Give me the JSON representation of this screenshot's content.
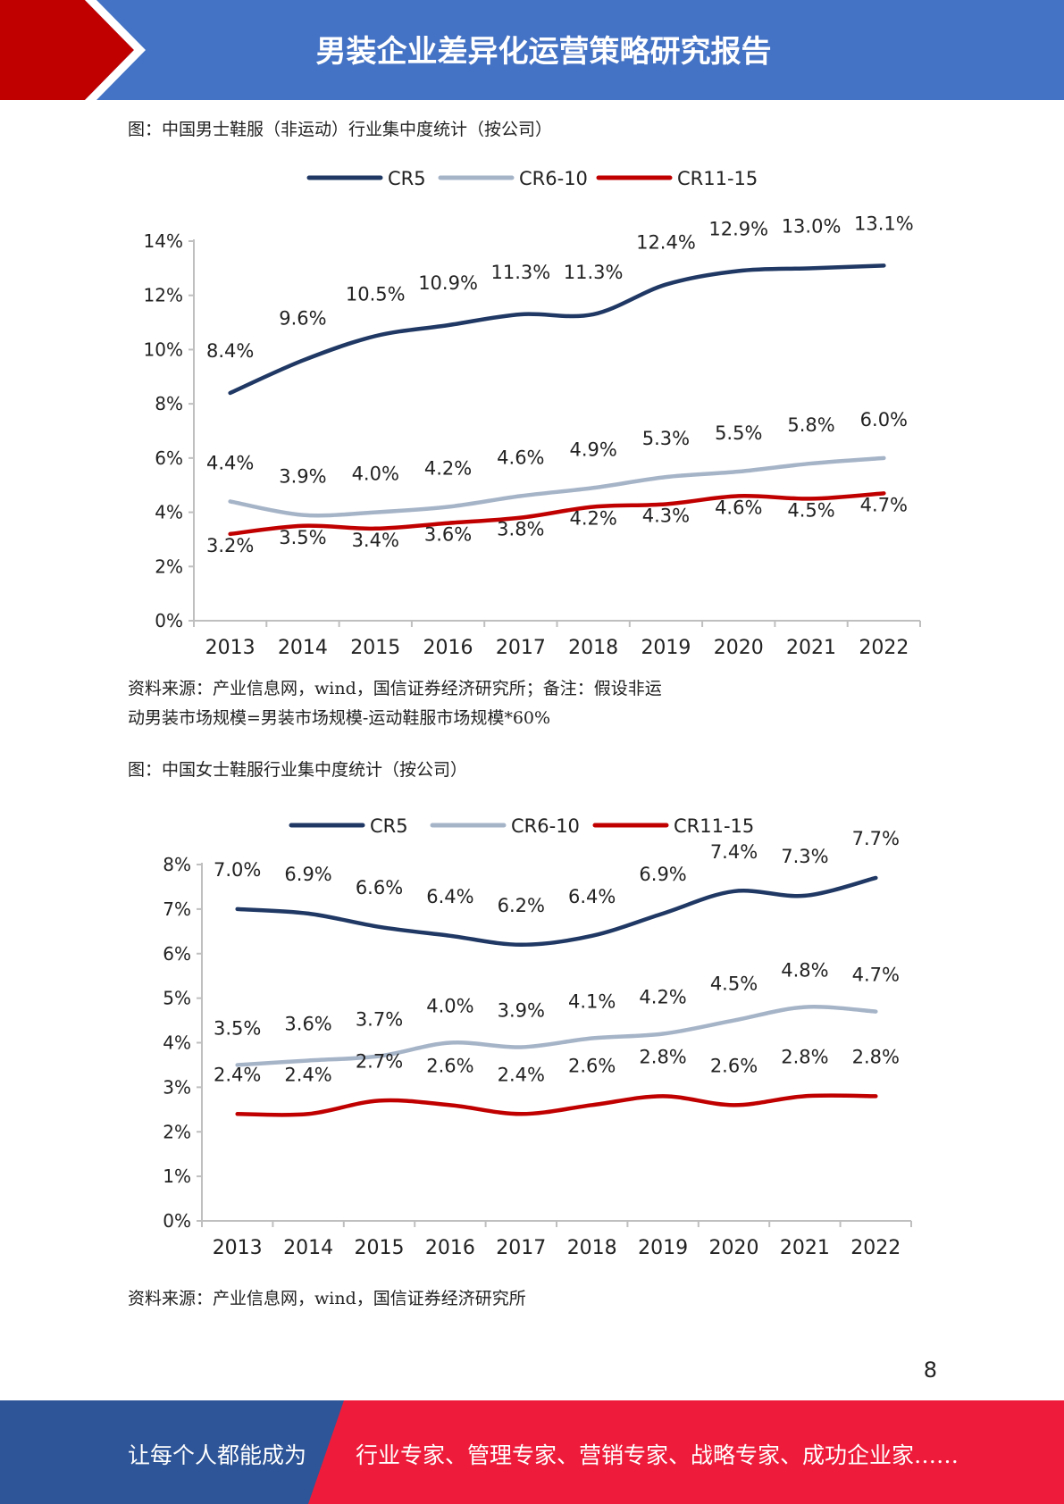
{
  "header": {
    "title": "男装企业差异化运营策略研究报告"
  },
  "figure1": {
    "caption": "图：中国男士鞋服（非运动）行业集中度统计（按公司）",
    "source_line1": "资料来源：产业信息网，wind，国信证券经济研究所；备注：假设非运",
    "source_line2": "动男装市场规模=男装市场规模-运动鞋服市场规模*60%"
  },
  "figure2": {
    "caption": "图：中国女士鞋服行业集中度统计（按公司）",
    "source_line1": "资料来源：产业信息网，wind，国信证券经济研究所"
  },
  "page_number": "8",
  "footer": {
    "left_text": "让每个人都能成为",
    "right_text": "行业专家、管理专家、营销专家、战略专家、成功企业家……"
  },
  "colors": {
    "header_blue": "#4472c4",
    "header_red": "#c00000",
    "footer_blue": "#2e5597",
    "footer_red": "#ee1c3a"
  },
  "chart_data": [
    {
      "type": "line",
      "categories": [
        "2013",
        "2014",
        "2015",
        "2016",
        "2017",
        "2018",
        "2019",
        "2020",
        "2021",
        "2022"
      ],
      "ylim": [
        0,
        14
      ],
      "yticks": [
        "0%",
        "2%",
        "4%",
        "6%",
        "8%",
        "10%",
        "12%",
        "14%"
      ],
      "legend": "top-center",
      "series": [
        {
          "name": "CR5",
          "color": "#1f3864",
          "values": [
            8.4,
            9.6,
            10.5,
            10.9,
            11.3,
            11.3,
            12.4,
            12.9,
            13.0,
            13.1
          ],
          "labels": [
            "8.4%",
            "9.6%",
            "10.5%",
            "10.9%",
            "11.3%",
            "11.3%",
            "12.4%",
            "12.9%",
            "13.0%",
            "13.1%"
          ]
        },
        {
          "name": "CR6-10",
          "color": "#a6b4c8",
          "values": [
            4.4,
            3.9,
            4.0,
            4.2,
            4.6,
            4.9,
            5.3,
            5.5,
            5.8,
            6.0
          ],
          "labels": [
            "4.4%",
            "3.9%",
            "4.0%",
            "4.2%",
            "4.6%",
            "4.9%",
            "5.3%",
            "5.5%",
            "5.8%",
            "6.0%"
          ]
        },
        {
          "name": "CR11-15",
          "color": "#c00000",
          "values": [
            3.2,
            3.5,
            3.4,
            3.6,
            3.8,
            4.2,
            4.3,
            4.6,
            4.5,
            4.7
          ],
          "labels": [
            "3.2%",
            "3.5%",
            "3.4%",
            "3.6%",
            "3.8%",
            "4.2%",
            "4.3%",
            "4.6%",
            "4.5%",
            "4.7%"
          ]
        }
      ]
    },
    {
      "type": "line",
      "categories": [
        "2013",
        "2014",
        "2015",
        "2016",
        "2017",
        "2018",
        "2019",
        "2020",
        "2021",
        "2022"
      ],
      "ylim": [
        0,
        8
      ],
      "yticks": [
        "0%",
        "1%",
        "2%",
        "3%",
        "4%",
        "5%",
        "6%",
        "7%",
        "8%"
      ],
      "legend": "top-center",
      "series": [
        {
          "name": "CR5",
          "color": "#1f3864",
          "values": [
            7.0,
            6.9,
            6.6,
            6.4,
            6.2,
            6.4,
            6.9,
            7.4,
            7.3,
            7.7
          ],
          "labels": [
            "7.0%",
            "6.9%",
            "6.6%",
            "6.4%",
            "6.2%",
            "6.4%",
            "6.9%",
            "7.4%",
            "7.3%",
            "7.7%"
          ]
        },
        {
          "name": "CR6-10",
          "color": "#a6b4c8",
          "values": [
            3.5,
            3.6,
            3.7,
            4.0,
            3.9,
            4.1,
            4.2,
            4.5,
            4.8,
            4.7
          ],
          "labels": [
            "3.5%",
            "3.6%",
            "3.7%",
            "4.0%",
            "3.9%",
            "4.1%",
            "4.2%",
            "4.5%",
            "4.8%",
            "4.7%"
          ]
        },
        {
          "name": "CR11-15",
          "color": "#c00000",
          "values": [
            2.4,
            2.4,
            2.7,
            2.6,
            2.4,
            2.6,
            2.8,
            2.6,
            2.8,
            2.8
          ],
          "labels": [
            "2.4%",
            "2.4%",
            "2.7%",
            "2.6%",
            "2.4%",
            "2.6%",
            "2.8%",
            "2.6%",
            "2.8%",
            "2.8%"
          ]
        }
      ]
    }
  ]
}
